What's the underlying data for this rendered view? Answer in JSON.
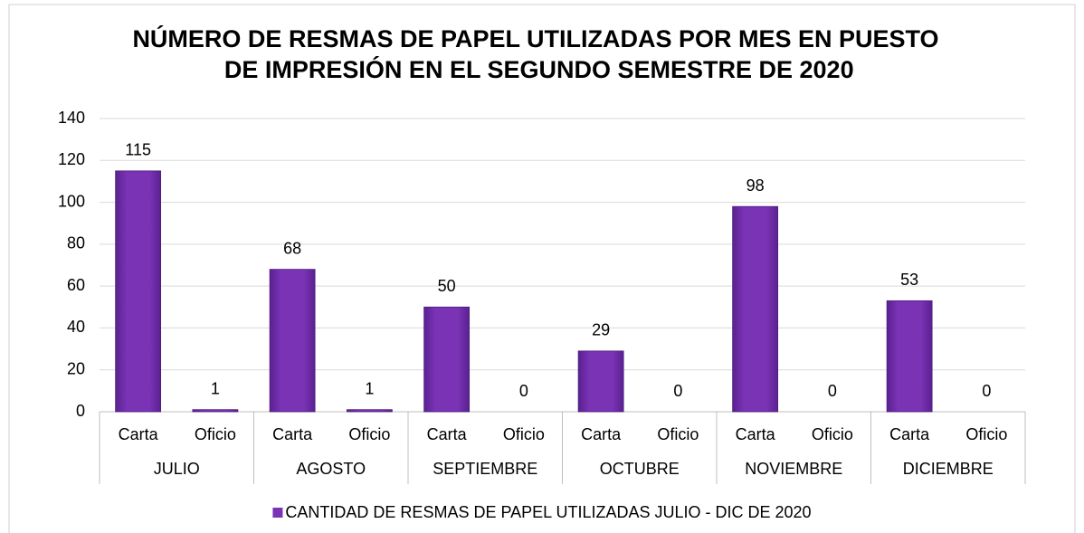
{
  "chart_data": {
    "type": "bar",
    "title": "NÚMERO DE RESMAS DE PAPEL UTILIZADAS POR MES EN PUESTO DE IMPRESIÓN EN EL SEGUNDO SEMESTRE DE 2020",
    "categories": [
      "Carta",
      "Oficio",
      "Carta",
      "Oficio",
      "Carta",
      "Oficio",
      "Carta",
      "Oficio",
      "Carta",
      "Oficio",
      "Carta",
      "Oficio"
    ],
    "groups": [
      "JULIO",
      "AGOSTO",
      "SEPTIEMBRE",
      "OCTUBRE",
      "NOVIEMBRE",
      "DICIEMBRE"
    ],
    "series": [
      {
        "name": "CANTIDAD DE RESMAS DE PAPEL UTILIZADAS JULIO - DIC  DE 2020",
        "color": "#7a33b5",
        "values": [
          115,
          1,
          68,
          1,
          50,
          0,
          29,
          0,
          98,
          0,
          53,
          0
        ]
      }
    ],
    "ylim": [
      0,
      140
    ],
    "yticks": [
      0,
      20,
      40,
      60,
      80,
      100,
      120,
      140
    ],
    "grid": true,
    "legend": "bottom"
  }
}
